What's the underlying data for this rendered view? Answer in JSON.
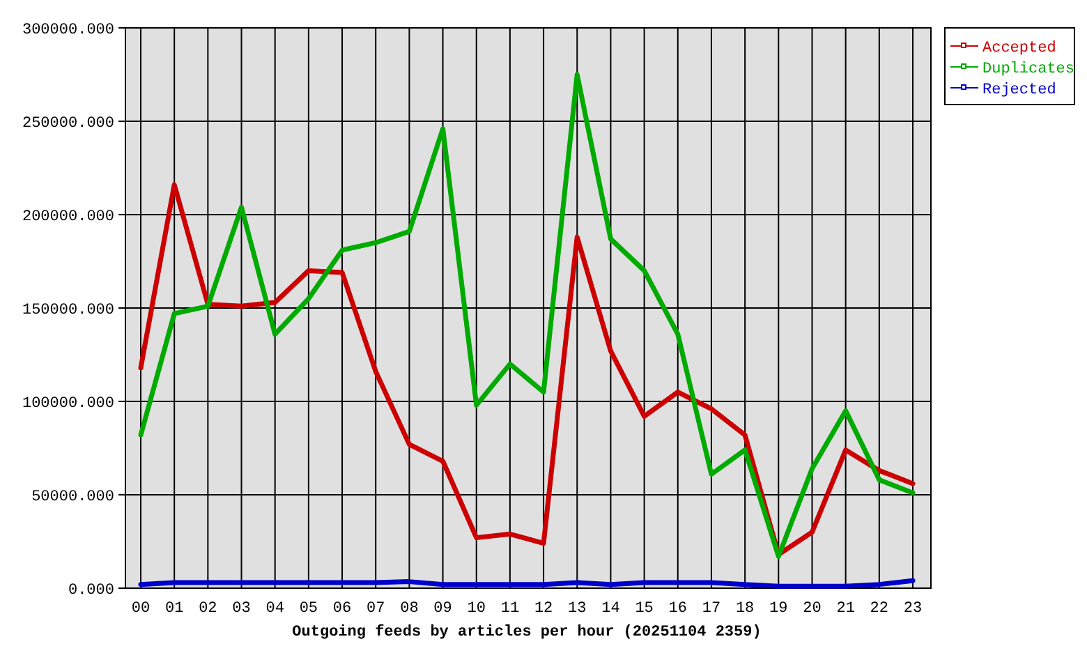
{
  "chart_data": {
    "type": "line",
    "xlabel": "Outgoing feeds by articles per hour (20251104 2359)",
    "categories": [
      "00",
      "01",
      "02",
      "03",
      "04",
      "05",
      "06",
      "07",
      "08",
      "09",
      "10",
      "11",
      "12",
      "13",
      "14",
      "15",
      "16",
      "17",
      "18",
      "19",
      "20",
      "21",
      "22",
      "23"
    ],
    "series": [
      {
        "name": "Accepted",
        "color": "#cc0000",
        "values": [
          118000,
          216000,
          152000,
          151000,
          153000,
          170000,
          169000,
          116000,
          77000,
          68000,
          27000,
          29000,
          24000,
          188000,
          127000,
          92000,
          105000,
          96000,
          82000,
          18000,
          30000,
          74000,
          63000,
          56000
        ]
      },
      {
        "name": "Duplicates",
        "color": "#00aa00",
        "values": [
          82000,
          147000,
          151000,
          204000,
          136000,
          155000,
          181000,
          185000,
          191000,
          246000,
          98000,
          120000,
          105000,
          275000,
          187000,
          170000,
          136000,
          61000,
          74000,
          17000,
          64000,
          95000,
          58000,
          51000
        ]
      },
      {
        "name": "Rejected",
        "color": "#0000cc",
        "values": [
          2000,
          3000,
          3000,
          3000,
          3000,
          3000,
          3000,
          3000,
          3500,
          2000,
          2000,
          2000,
          2000,
          3000,
          2000,
          3000,
          3000,
          3000,
          2000,
          1000,
          1000,
          1000,
          2000,
          4000
        ]
      }
    ],
    "ylim": [
      0,
      300000
    ],
    "yticks": [
      {
        "value": 0,
        "label": "0.000"
      },
      {
        "value": 50000,
        "label": "50000.000"
      },
      {
        "value": 100000,
        "label": "100000.000"
      },
      {
        "value": 150000,
        "label": "150000.000"
      },
      {
        "value": 200000,
        "label": "200000.000"
      },
      {
        "value": 250000,
        "label": "250000.000"
      },
      {
        "value": 300000,
        "label": "300000.000"
      }
    ],
    "grid": true,
    "legend": "top right"
  }
}
